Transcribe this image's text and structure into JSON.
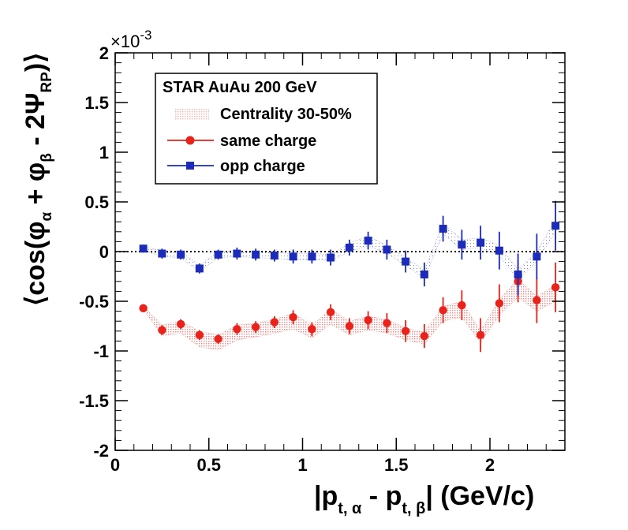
{
  "chart_data": {
    "type": "scatter",
    "x_axis": {
      "range": [
        0,
        2.4
      ],
      "ticks": [
        0,
        0.5,
        1,
        1.5,
        2
      ],
      "tick_labels": [
        "0",
        "0.5",
        "1",
        "1.5",
        "2"
      ],
      "title_main": "|p",
      "title_sub_a": "t, α",
      "title_minus": " - p",
      "title_sub_b": "t, β",
      "title_tail": "|  (GeV/c)"
    },
    "y_axis": {
      "range": [
        -2,
        2
      ],
      "ticks": [
        -2,
        -1.5,
        -1,
        -0.5,
        0,
        0.5,
        1,
        1.5,
        2
      ],
      "tick_labels": [
        "-2",
        "-1.5",
        "-1",
        "-0.5",
        "0",
        "0.5",
        "1",
        "1.5",
        "2"
      ],
      "exponent_prefix": "×10",
      "exponent": "-3",
      "title_open": "⟨cos(φ",
      "title_sub_alpha": "α",
      "title_mid": " + φ",
      "title_sub_beta": "β",
      "title_minus": " - 2Ψ",
      "title_sub_rp": "RP",
      "title_close": ")⟩"
    },
    "reference_line": 0,
    "legend": {
      "title": "STAR  AuAu 200 GeV",
      "subtitle": "Centrality 30-50%",
      "position": "top-left"
    },
    "series": [
      {
        "name": "same charge",
        "color": "#e8231c",
        "marker": "circle",
        "x": [
          0.15,
          0.25,
          0.35,
          0.45,
          0.55,
          0.65,
          0.75,
          0.85,
          0.95,
          1.05,
          1.15,
          1.25,
          1.35,
          1.45,
          1.55,
          1.65,
          1.75,
          1.85,
          1.95,
          2.05,
          2.15,
          2.25,
          2.35
        ],
        "y": [
          -0.57,
          -0.79,
          -0.73,
          -0.84,
          -0.88,
          -0.78,
          -0.76,
          -0.71,
          -0.66,
          -0.78,
          -0.61,
          -0.75,
          -0.69,
          -0.72,
          -0.8,
          -0.85,
          -0.59,
          -0.54,
          -0.84,
          -0.52,
          -0.3,
          -0.49,
          -0.36
        ],
        "err": [
          0.04,
          0.05,
          0.05,
          0.05,
          0.05,
          0.06,
          0.06,
          0.06,
          0.07,
          0.07,
          0.08,
          0.08,
          0.09,
          0.1,
          0.11,
          0.12,
          0.13,
          0.15,
          0.17,
          0.19,
          0.21,
          0.23,
          0.25
        ],
        "band_lower": [
          -0.58,
          -0.85,
          -0.82,
          -0.96,
          -0.99,
          -0.89,
          -0.86,
          -0.82,
          -0.78,
          -0.87,
          -0.73,
          -0.84,
          -0.79,
          -0.82,
          -0.89,
          -0.93,
          -0.7,
          -0.66,
          -0.92,
          -0.64,
          -0.46,
          -0.6,
          -0.5
        ],
        "band_upper": [
          -0.55,
          -0.74,
          -0.7,
          -0.8,
          -0.84,
          -0.74,
          -0.72,
          -0.68,
          -0.62,
          -0.74,
          -0.58,
          -0.7,
          -0.65,
          -0.68,
          -0.77,
          -0.81,
          -0.55,
          -0.5,
          -0.8,
          -0.48,
          -0.28,
          -0.45,
          -0.34
        ]
      },
      {
        "name": "opp charge",
        "color": "#1c2bb8",
        "marker": "square",
        "x": [
          0.15,
          0.25,
          0.35,
          0.45,
          0.55,
          0.65,
          0.75,
          0.85,
          0.95,
          1.05,
          1.15,
          1.25,
          1.35,
          1.45,
          1.55,
          1.65,
          1.75,
          1.85,
          1.95,
          2.05,
          2.15,
          2.25,
          2.35
        ],
        "y": [
          0.03,
          -0.02,
          -0.03,
          -0.17,
          -0.03,
          -0.02,
          -0.03,
          -0.04,
          -0.05,
          -0.05,
          -0.06,
          0.04,
          0.11,
          0.02,
          -0.1,
          -0.23,
          0.23,
          0.07,
          0.09,
          0.01,
          -0.23,
          -0.05,
          0.26
        ],
        "err": [
          0.04,
          0.05,
          0.05,
          0.05,
          0.05,
          0.06,
          0.06,
          0.06,
          0.07,
          0.07,
          0.08,
          0.08,
          0.09,
          0.1,
          0.11,
          0.12,
          0.13,
          0.15,
          0.17,
          0.19,
          0.21,
          0.23,
          0.25
        ],
        "band_lower": [
          0.01,
          -0.05,
          -0.06,
          -0.2,
          -0.06,
          -0.05,
          -0.06,
          -0.07,
          -0.08,
          -0.08,
          -0.09,
          0.0,
          0.06,
          -0.02,
          -0.14,
          -0.27,
          0.18,
          0.02,
          0.04,
          -0.04,
          -0.28,
          -0.1,
          0.2
        ],
        "band_upper": [
          0.05,
          0.01,
          0.0,
          -0.14,
          0.0,
          0.01,
          0.0,
          -0.01,
          -0.02,
          -0.02,
          -0.03,
          0.08,
          0.16,
          0.06,
          -0.06,
          -0.19,
          0.28,
          0.12,
          0.14,
          0.06,
          -0.18,
          0.0,
          0.32
        ]
      }
    ]
  },
  "colors": {
    "same_charge": "#e8231c",
    "opp_charge": "#1c2bb8",
    "axis": "#000000"
  }
}
